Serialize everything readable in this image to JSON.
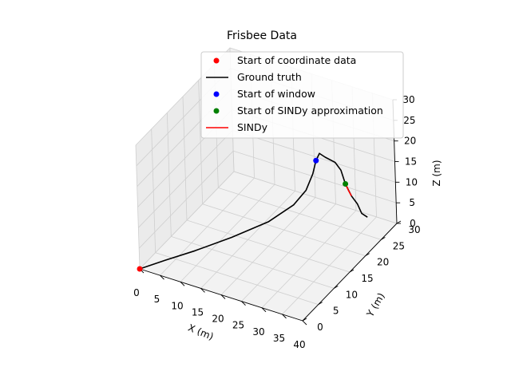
{
  "chart_data": {
    "type": "line",
    "projection": "3d",
    "title": "Frisbee Data",
    "xlabel": "X (m)",
    "ylabel": "Y (m)",
    "zlabel": "Z (m)",
    "xlim": [
      0,
      40
    ],
    "ylim": [
      0,
      30
    ],
    "zlim": [
      0,
      30
    ],
    "xticks": [
      "0",
      "5",
      "10",
      "15",
      "20",
      "25",
      "30",
      "35",
      "40"
    ],
    "yticks": [
      "0",
      "5",
      "10",
      "15",
      "20",
      "25",
      "30"
    ],
    "zticks": [
      "0",
      "5",
      "10",
      "15",
      "20",
      "25",
      "30"
    ],
    "grid": true,
    "legend_position": "top-right",
    "colors": {
      "start_coord": "#ff0000",
      "ground_truth": "#000000",
      "start_window": "#0000ff",
      "start_sindy": "#008000",
      "sindy": "#ff0000"
    },
    "series": [
      {
        "name": "Start of coordinate data",
        "kind": "point",
        "points": [
          [
            0,
            0,
            0
          ]
        ]
      },
      {
        "name": "Ground truth",
        "kind": "line",
        "points": [
          [
            0,
            0,
            0
          ],
          [
            4,
            3,
            1
          ],
          [
            9,
            6,
            2.5
          ],
          [
            15,
            10,
            4.5
          ],
          [
            21,
            14,
            7
          ],
          [
            25,
            17,
            10
          ],
          [
            27,
            18.5,
            13
          ],
          [
            28,
            19.5,
            16.5
          ],
          [
            28.5,
            20,
            19.5
          ],
          [
            29,
            20.5,
            21
          ],
          [
            30,
            21,
            20
          ],
          [
            32,
            21.5,
            19
          ],
          [
            33,
            22,
            17
          ],
          [
            34,
            22,
            14
          ],
          [
            35,
            22.5,
            11
          ],
          [
            36,
            23,
            9
          ],
          [
            37,
            23,
            7
          ],
          [
            38,
            23.5,
            6
          ]
        ]
      },
      {
        "name": "Start of window",
        "kind": "point",
        "points": [
          [
            28.5,
            20,
            19.5
          ]
        ]
      },
      {
        "name": "Start of SINDy approximation",
        "kind": "point",
        "points": [
          [
            34,
            22,
            14
          ]
        ]
      },
      {
        "name": "SINDy",
        "kind": "line",
        "points": [
          [
            34,
            22,
            14
          ],
          [
            34.5,
            22.2,
            12.5
          ],
          [
            35,
            22.5,
            11
          ]
        ]
      }
    ]
  }
}
